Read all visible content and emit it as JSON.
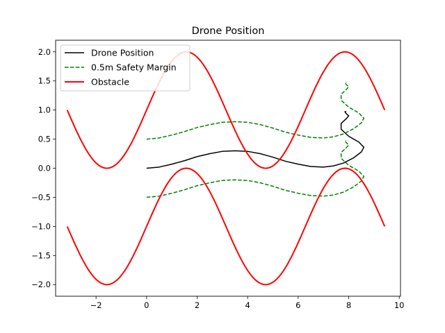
{
  "chart_data": {
    "type": "line",
    "title": "Drone Position",
    "xlabel": "",
    "ylabel": "",
    "xlim": [
      -3.6,
      10.05
    ],
    "ylim": [
      -2.2,
      2.2
    ],
    "x_ticks": [
      -2,
      0,
      2,
      4,
      6,
      8,
      10
    ],
    "x_tick_labels": [
      "−2",
      "0",
      "2",
      "4",
      "6",
      "8",
      "10"
    ],
    "y_ticks": [
      -2.0,
      -1.5,
      -1.0,
      -0.5,
      0.0,
      0.5,
      1.0,
      1.5,
      2.0
    ],
    "y_tick_labels": [
      "−2.0",
      "−1.5",
      "−1.0",
      "−0.5",
      "0.0",
      "0.5",
      "1.0",
      "1.5",
      "2.0"
    ],
    "grid": false,
    "legend_position": "top-left",
    "series": [
      {
        "name": "Drone Position",
        "color": "#000000",
        "style": "solid",
        "points": [
          [
            0.0,
            0.0
          ],
          [
            0.5,
            0.02
          ],
          [
            1.0,
            0.07
          ],
          [
            1.5,
            0.13
          ],
          [
            2.0,
            0.2
          ],
          [
            2.5,
            0.25
          ],
          [
            3.0,
            0.29
          ],
          [
            3.5,
            0.3
          ],
          [
            4.0,
            0.29
          ],
          [
            4.5,
            0.25
          ],
          [
            5.0,
            0.19
          ],
          [
            5.5,
            0.12
          ],
          [
            6.0,
            0.07
          ],
          [
            6.5,
            0.03
          ],
          [
            7.0,
            0.02
          ],
          [
            7.4,
            0.04
          ],
          [
            7.8,
            0.09
          ],
          [
            8.2,
            0.18
          ],
          [
            8.5,
            0.28
          ],
          [
            8.6,
            0.36
          ],
          [
            8.4,
            0.45
          ],
          [
            8.0,
            0.55
          ],
          [
            7.7,
            0.67
          ],
          [
            7.7,
            0.77
          ],
          [
            7.9,
            0.85
          ],
          [
            8.0,
            0.9
          ],
          [
            7.9,
            0.94
          ],
          [
            7.85,
            0.97
          ],
          [
            7.9,
            0.98
          ]
        ]
      },
      {
        "name": "0.5m Safety Margin",
        "color": "#008000",
        "style": "dashed",
        "points": [
          [
            0.0,
            0.5
          ],
          [
            0.5,
            0.52
          ],
          [
            1.0,
            0.57
          ],
          [
            1.5,
            0.63
          ],
          [
            2.0,
            0.7
          ],
          [
            2.5,
            0.75
          ],
          [
            3.0,
            0.79
          ],
          [
            3.5,
            0.8
          ],
          [
            4.0,
            0.79
          ],
          [
            4.5,
            0.75
          ],
          [
            5.0,
            0.69
          ],
          [
            5.5,
            0.62
          ],
          [
            6.0,
            0.57
          ],
          [
            6.5,
            0.53
          ],
          [
            7.0,
            0.52
          ],
          [
            7.4,
            0.54
          ],
          [
            7.8,
            0.59
          ],
          [
            8.2,
            0.68
          ],
          [
            8.5,
            0.78
          ],
          [
            8.6,
            0.86
          ],
          [
            8.4,
            0.95
          ],
          [
            8.0,
            1.05
          ],
          [
            7.7,
            1.17
          ],
          [
            7.7,
            1.27
          ],
          [
            7.9,
            1.35
          ],
          [
            8.0,
            1.4
          ],
          [
            7.9,
            1.44
          ],
          [
            7.85,
            1.47
          ],
          [
            7.9,
            1.48
          ]
        ]
      },
      {
        "name": "",
        "color": "#008000",
        "style": "dashed",
        "points": [
          [
            0.0,
            -0.5
          ],
          [
            0.5,
            -0.48
          ],
          [
            1.0,
            -0.43
          ],
          [
            1.5,
            -0.37
          ],
          [
            2.0,
            -0.3
          ],
          [
            2.5,
            -0.25
          ],
          [
            3.0,
            -0.21
          ],
          [
            3.5,
            -0.2
          ],
          [
            4.0,
            -0.21
          ],
          [
            4.5,
            -0.25
          ],
          [
            5.0,
            -0.31
          ],
          [
            5.5,
            -0.38
          ],
          [
            6.0,
            -0.43
          ],
          [
            6.5,
            -0.47
          ],
          [
            7.0,
            -0.48
          ],
          [
            7.4,
            -0.46
          ],
          [
            7.8,
            -0.41
          ],
          [
            8.2,
            -0.32
          ],
          [
            8.5,
            -0.22
          ],
          [
            8.6,
            -0.14
          ],
          [
            8.4,
            -0.05
          ],
          [
            8.0,
            0.05
          ],
          [
            7.7,
            0.17
          ],
          [
            7.7,
            0.27
          ],
          [
            7.9,
            0.35
          ],
          [
            8.0,
            0.4
          ],
          [
            7.9,
            0.44
          ],
          [
            7.85,
            0.47
          ],
          [
            7.9,
            0.48
          ]
        ]
      },
      {
        "name": "Obstacle",
        "color": "#ff0000",
        "style": "solid",
        "function": "1 + sin(x)",
        "x_range": [
          -3.1416,
          9.4248
        ]
      },
      {
        "name": "",
        "color": "#ff0000",
        "style": "solid",
        "function": "-1 + sin(x)",
        "x_range": [
          -3.1416,
          9.4248
        ]
      }
    ],
    "legend": [
      {
        "label": "Drone Position",
        "color": "#000000",
        "style": "solid"
      },
      {
        "label": "0.5m Safety Margin",
        "color": "#008000",
        "style": "dashed"
      },
      {
        "label": "Obstacle",
        "color": "#ff0000",
        "style": "solid"
      }
    ]
  }
}
